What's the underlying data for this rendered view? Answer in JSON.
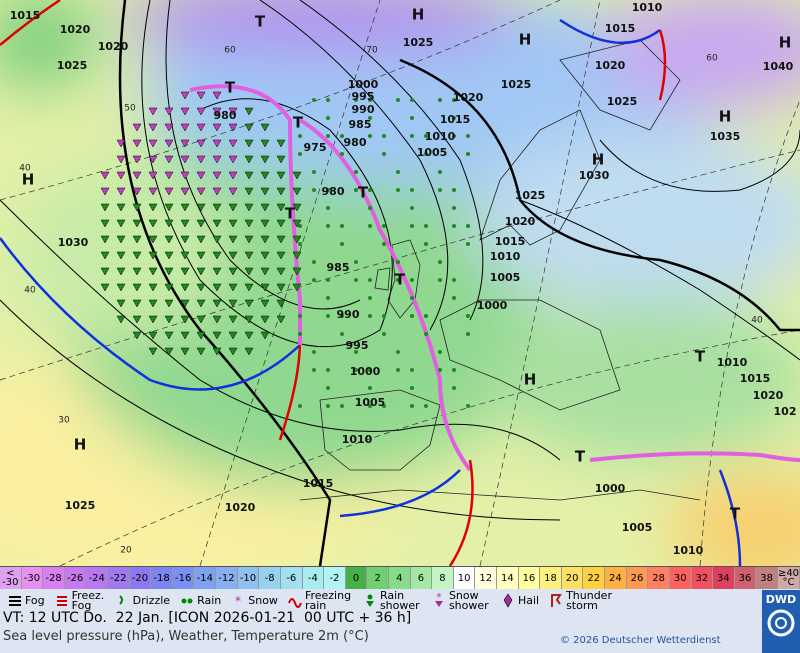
{
  "map": {
    "labels": [
      "1015",
      "1020",
      "1020",
      "1025",
      "H",
      "1030",
      "T",
      "980",
      "T",
      "975",
      "T",
      "980",
      "T",
      "T",
      "985",
      "990",
      "995",
      "1000",
      "1005",
      "1010",
      "1015",
      "1020",
      "1025",
      "H",
      "H",
      "1025",
      "1000",
      "995",
      "990",
      "985",
      "980",
      "1010",
      "1005",
      "1015",
      "1020",
      "1025",
      "H",
      "1010",
      "1015",
      "1020",
      "1025",
      "H",
      "1030",
      "1025",
      "1020",
      "1015",
      "1010",
      "1005",
      "1000",
      "H",
      "1035",
      "H",
      "1040",
      "T",
      "H",
      "T",
      "1010",
      "1015",
      "1020",
      "102",
      "T",
      "1000",
      "1005",
      "1010",
      "T"
    ],
    "grid_labels": [
      "40",
      "50",
      "60",
      "70",
      "60",
      "40",
      "30",
      "40",
      "20"
    ]
  },
  "temperature_scale": {
    "below_label": [
      "<",
      "-30"
    ],
    "values": [
      -30,
      -28,
      -26,
      -24,
      -22,
      -20,
      -18,
      -16,
      -14,
      -12,
      -10,
      -8,
      -6,
      -4,
      -2,
      0,
      2,
      4,
      6,
      8,
      10,
      12,
      14,
      16,
      18,
      20,
      22,
      24,
      26,
      28,
      30,
      32,
      34,
      36,
      38
    ],
    "colors": [
      "#e890f0",
      "#d880f0",
      "#c878f0",
      "#b878f0",
      "#a078f0",
      "#8c78f0",
      "#7c84f0",
      "#7890f0",
      "#80a0f0",
      "#88b0f0",
      "#90c0f0",
      "#98d0f0",
      "#a0e0f0",
      "#a8ecf0",
      "#b0f4f4",
      "#48b048",
      "#70d070",
      "#88dc88",
      "#a4e8a4",
      "#c4f4c4",
      "#ffffff",
      "#ffffe0",
      "#ffffc0",
      "#ffffa0",
      "#fff080",
      "#ffe060",
      "#ffd040",
      "#ffb040",
      "#ff9850",
      "#ff8060",
      "#ff6060",
      "#f05060",
      "#e04060",
      "#d06070",
      "#c08080"
    ],
    "above_label": [
      "≥40",
      "°C"
    ]
  },
  "weather_legend": [
    "Fog",
    "Freez. Fog",
    "Drizzle",
    "Rain",
    "Snow",
    "Freezing rain",
    "Rain shower",
    "Snow shower",
    "Hail",
    "Thunder storm"
  ],
  "footer": {
    "valid_time": "VT: 12 UTC Do.  22 Jan. [ICON 2026-01-21  00 UTC + 36 h]",
    "subtitle": "Sea level pressure (hPa), Weather, Temperature 2m (°C)",
    "copyright": "© 2026 Deutscher Wetterdienst",
    "logo": "DWD"
  }
}
